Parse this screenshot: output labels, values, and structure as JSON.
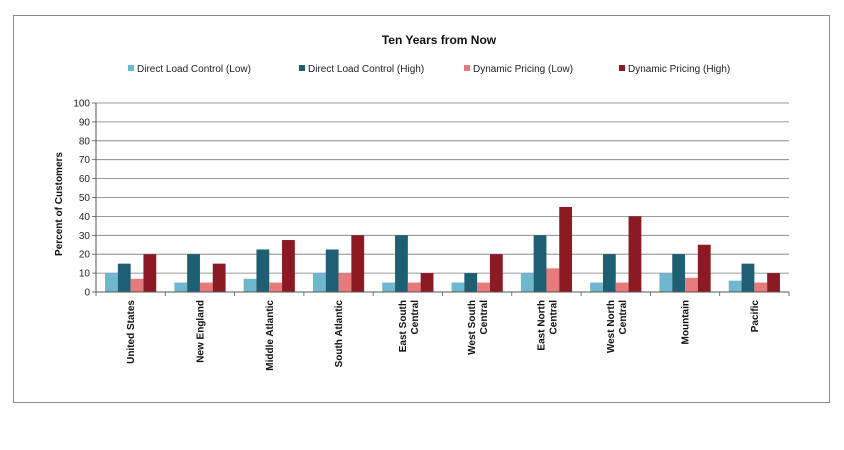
{
  "chart_data": {
    "type": "bar",
    "title": "Ten Years from Now",
    "xlabel": "",
    "ylabel": "Percent of Customers",
    "ylim": [
      0,
      100
    ],
    "yticks": [
      0,
      10,
      20,
      30,
      40,
      50,
      60,
      70,
      80,
      90,
      100
    ],
    "grid": true,
    "legend_position": "top",
    "categories": [
      [
        "United States"
      ],
      [
        "New England"
      ],
      [
        "Middle Atlantic"
      ],
      [
        "South Atlantic"
      ],
      [
        "East South",
        "Central"
      ],
      [
        "West South",
        "Central"
      ],
      [
        "East North",
        "Central"
      ],
      [
        "West North",
        "Central"
      ],
      [
        "Mountain"
      ],
      [
        "Pacific"
      ]
    ],
    "series": [
      {
        "name": "Direct Load Control (Low)",
        "color": "#6fb7cf",
        "values": [
          10,
          5,
          7,
          10,
          5,
          5,
          10,
          5,
          10,
          6
        ]
      },
      {
        "name": "Direct Load Control (High)",
        "color": "#1f5f73",
        "values": [
          15,
          20,
          22.5,
          22.5,
          30,
          10,
          30,
          20,
          20,
          15
        ]
      },
      {
        "name": "Dynamic Pricing (Low)",
        "color": "#e77a7a",
        "values": [
          7,
          5,
          5,
          10,
          5,
          5,
          12.5,
          5,
          7.5,
          5
        ]
      },
      {
        "name": "Dynamic Pricing (High)",
        "color": "#8b1a24",
        "values": [
          20,
          15,
          27.5,
          30,
          10,
          20,
          45,
          40,
          25,
          10
        ]
      }
    ]
  }
}
